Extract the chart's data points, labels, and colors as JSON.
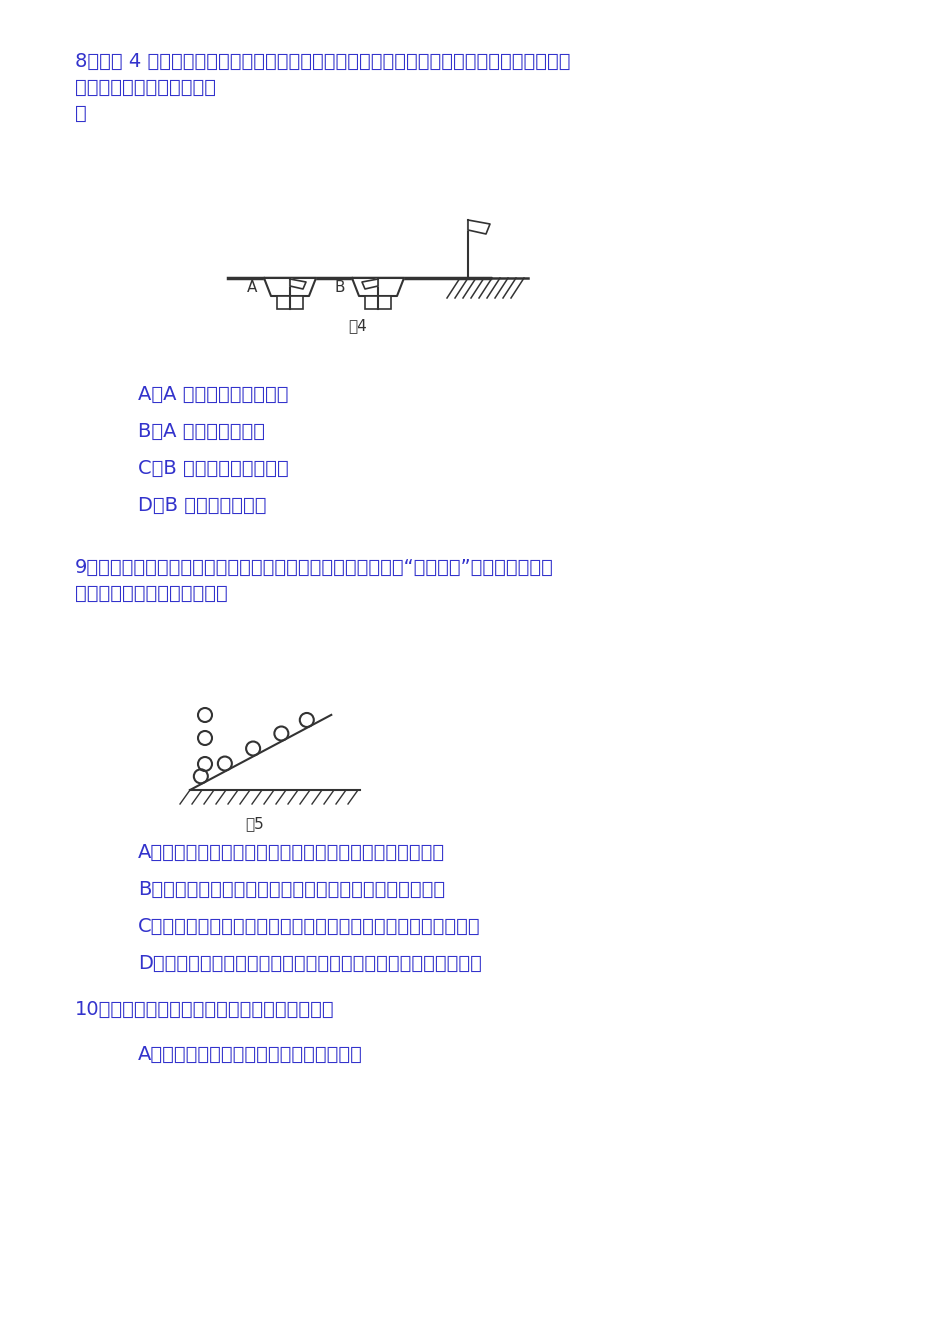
{
  "bg_color": "#ffffff",
  "text_color": "#3333cc",
  "fig_color": "#333333",
  "body_fontsize": 14,
  "q8_header": "8．如图 4 所示，由于风的原因，河岸上的旗帜向右飘，在河面上的两条船上的旗帜分别向右",
  "q8_line2": "和向左飘，两条船运动状态",
  "q8_line3": "是",
  "q8_opt_A": "A．A 船确定是向左运动的",
  "q8_opt_B": "B．A 船确定是静止的",
  "q8_opt_C": "C．B 船确定是向右运动的",
  "q8_opt_D": "D．B 船可能是静止的",
  "fig4_label": "图4",
  "q9_header": "9．伽利略为了争辩自由落体的规律，将落体试验转化为有名的“斜面试验”，对于这个争辩",
  "q9_line2": "过程，以下说法正确的选项是",
  "fig5_label": "图5",
  "q9_opt_A": "A．斜面试验放大了重力的作用，便于测量小球运动的路程",
  "q9_opt_B": "B．伽利略通过斜面试验验证了力不是维持物体运动的缘由",
  "q9_opt_C": "C．通过对斜面试验的观看与计算，直接得到自由落体的运动规律",
  "q9_opt_D": "D．依据斜面试验结论进展合理的外推，得到自由落体的运动规律",
  "q10_header": "10．关于速度和加速度，以下说法正确的选项是",
  "q10_opt_A": "A．物体的速度转变量大，其加速度肯定大"
}
